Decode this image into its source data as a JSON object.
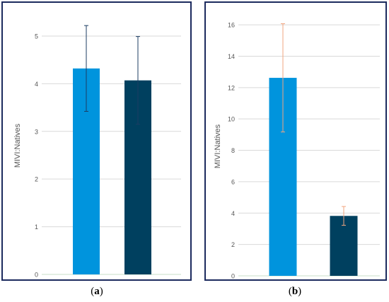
{
  "chart_data": [
    {
      "type": "bar",
      "panel_label": "a",
      "ylabel": "MIVI:Natives",
      "ylim": [
        0,
        5.4
      ],
      "yticks": [
        0,
        1,
        2,
        3,
        4,
        5
      ],
      "grid": true,
      "series": [
        {
          "values": [
            4.32,
            4.07
          ],
          "error": [
            0.9,
            0.92
          ]
        }
      ],
      "bar_colors": [
        "#0094dd",
        "#00405f"
      ],
      "error_color": "#1c3d63"
    },
    {
      "type": "bar",
      "panel_label": "b",
      "ylabel": "MIVI:Natives",
      "ylim": [
        0,
        16.5
      ],
      "yticks": [
        0,
        2,
        4,
        6,
        8,
        10,
        12,
        14,
        16
      ],
      "grid": true,
      "series": [
        {
          "values": [
            12.62,
            3.82
          ],
          "error": [
            3.45,
            0.6
          ]
        }
      ],
      "bar_colors": [
        "#0094dd",
        "#00405f"
      ],
      "error_color": "#f2a57f"
    }
  ]
}
